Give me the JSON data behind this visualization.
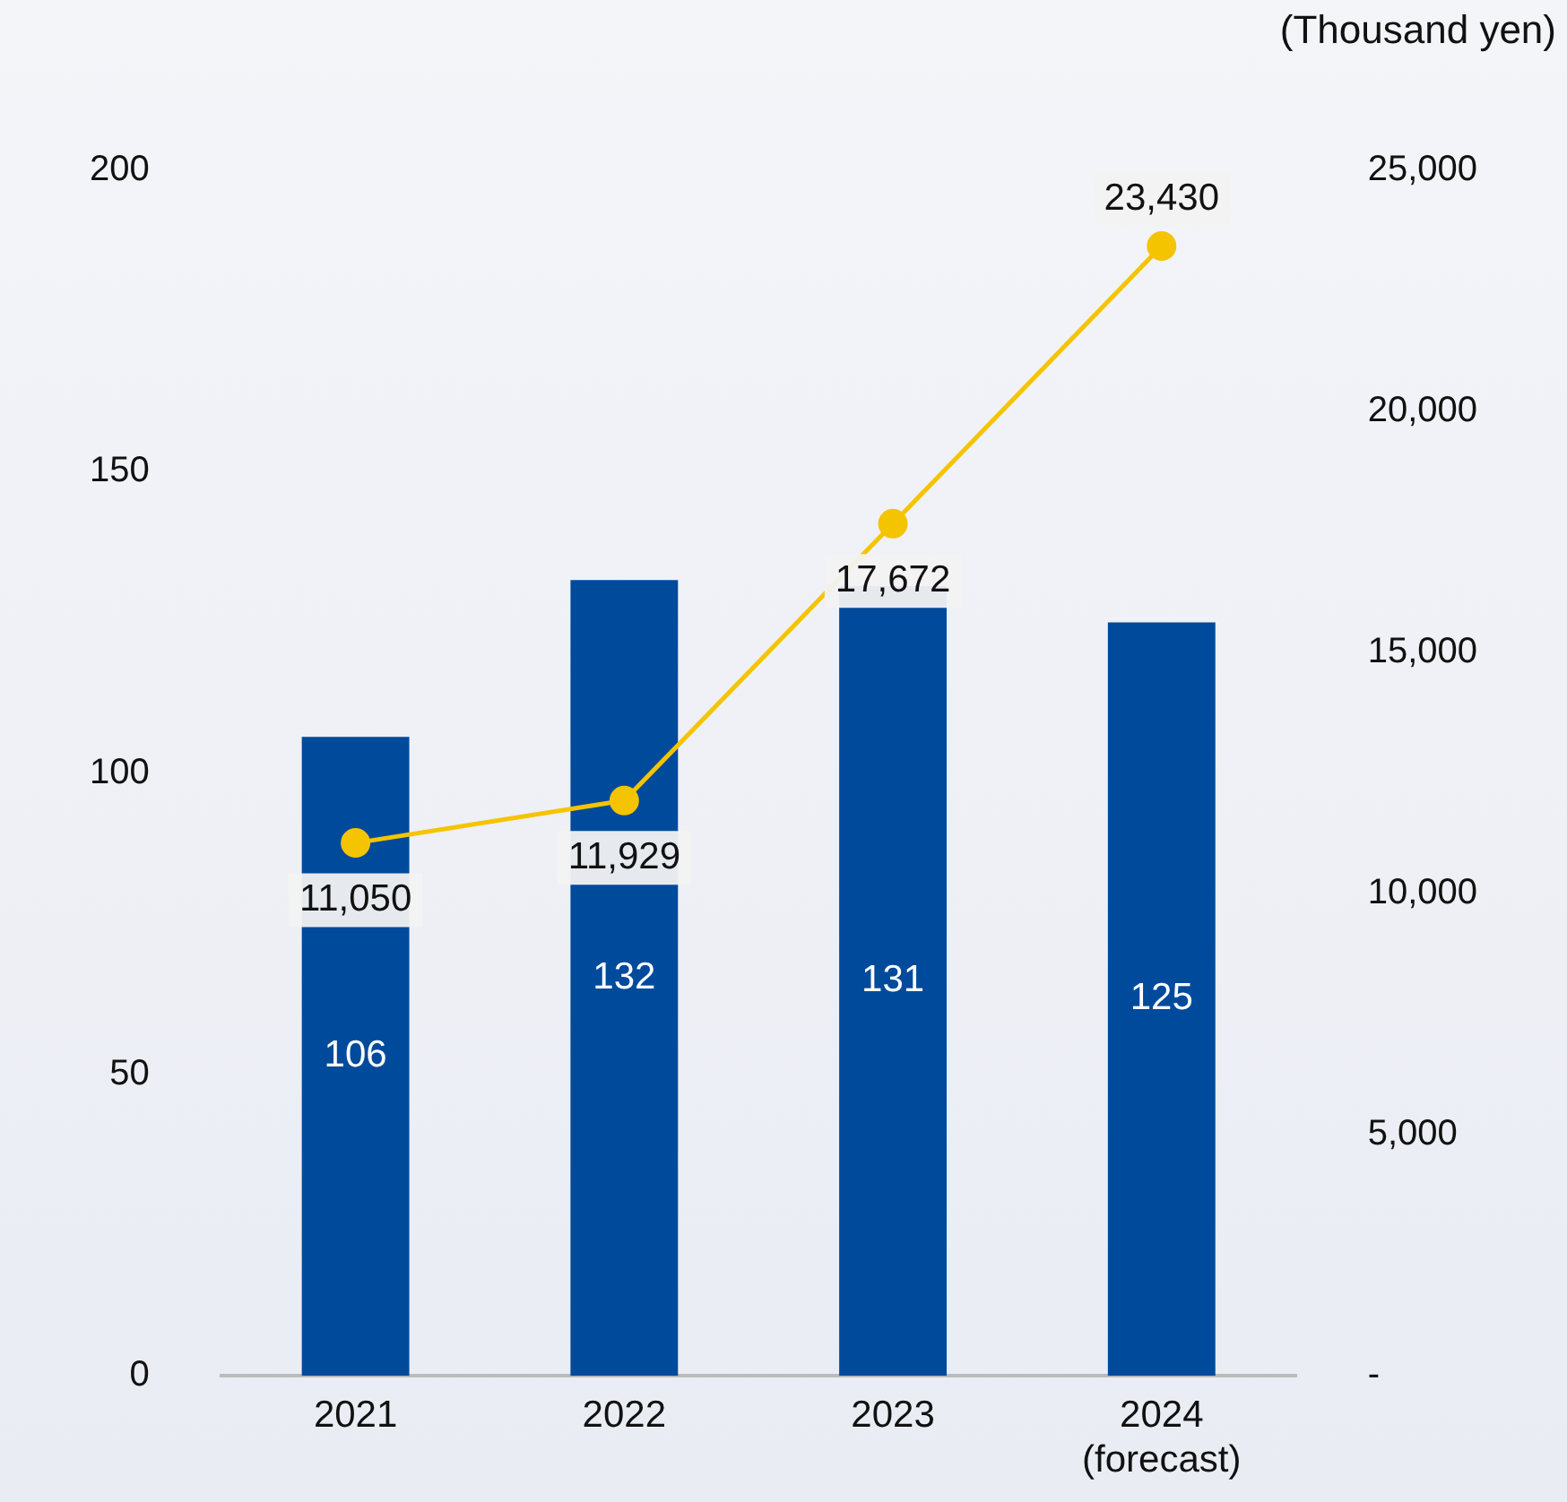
{
  "chart_data": {
    "type": "bar",
    "y2label": "(Thousand yen)",
    "categories": [
      "2021",
      "2022",
      "2023",
      "2024\n(forecast)"
    ],
    "series": [
      {
        "color": "#004a9c",
        "values": [
          106,
          132,
          131,
          125
        ]
      },
      {
        "type": "line",
        "axis": "y2",
        "color": "#f5c400",
        "marker": "circle",
        "values": [
          11050,
          11929,
          17672,
          23430
        ],
        "value_labels": [
          "11,050",
          "11,929",
          "17,672",
          "23,430"
        ]
      }
    ],
    "ylim": [
      0,
      200
    ],
    "yticks": [
      0,
      50,
      100,
      150,
      200
    ],
    "y2lim": [
      0,
      25000
    ],
    "y2ticks": [
      {
        "value": 0,
        "label": "-"
      },
      {
        "value": 5000,
        "label": "5,000"
      },
      {
        "value": 10000,
        "label": "10,000"
      },
      {
        "value": 15000,
        "label": "15,000"
      },
      {
        "value": 20000,
        "label": "20,000"
      },
      {
        "value": 25000,
        "label": "25,000"
      }
    ],
    "data_labels": true,
    "grid": false,
    "legend": false
  }
}
